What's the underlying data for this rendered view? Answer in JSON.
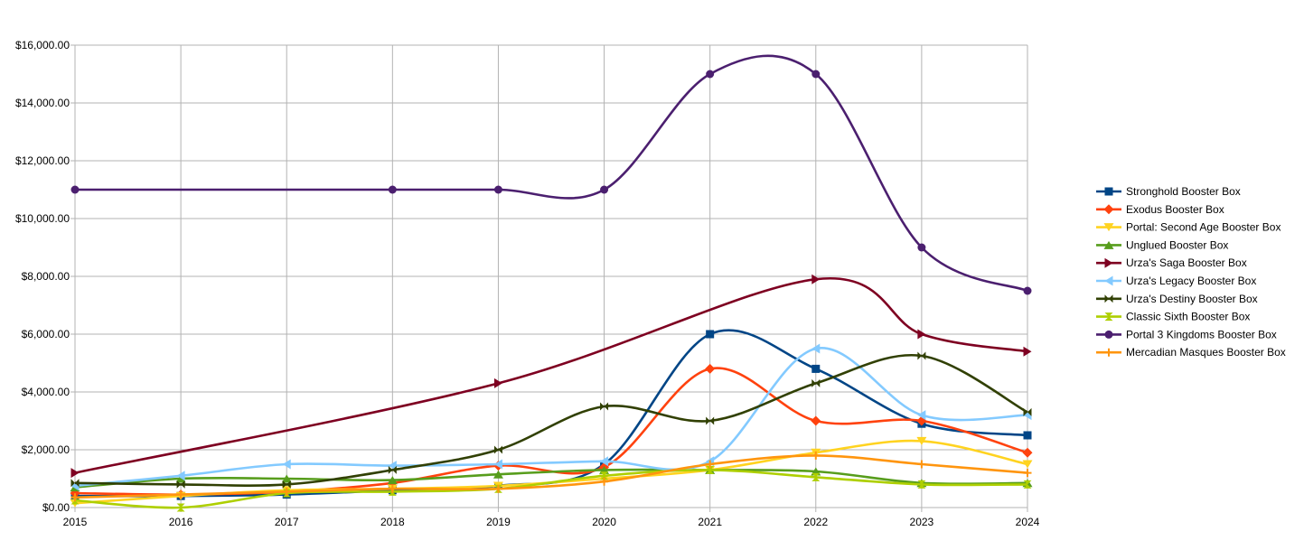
{
  "chart_data": {
    "type": "line",
    "title": "",
    "xlabel": "",
    "ylabel": "",
    "x": [
      "2015",
      "2016",
      "2017",
      "2018",
      "2019",
      "2020",
      "2021",
      "2022",
      "2023",
      "2024"
    ],
    "x_values": [
      2015,
      2016,
      2017,
      2018,
      2019,
      2020,
      2021,
      2022,
      2023,
      2024
    ],
    "ylim": [
      0,
      16000
    ],
    "y_ticks": [
      {
        "value": 0,
        "label": "$0.00"
      },
      {
        "value": 2000,
        "label": "$2,000.00"
      },
      {
        "value": 4000,
        "label": "$4,000.00"
      },
      {
        "value": 6000,
        "label": "$6,000.00"
      },
      {
        "value": 8000,
        "label": "$8,000.00"
      },
      {
        "value": 10000,
        "label": "$10,000.00"
      },
      {
        "value": 12000,
        "label": "$12,000.00"
      },
      {
        "value": 14000,
        "label": "$14,000.00"
      },
      {
        "value": 16000,
        "label": "$16,000.00"
      }
    ],
    "grid": true,
    "smooth": true,
    "legend_position": "right",
    "series": [
      {
        "name": "Stronghold Booster Box",
        "color": "#004586",
        "marker": "square",
        "values": [
          400,
          400,
          450,
          600,
          750,
          1500,
          6000,
          4800,
          2900,
          2500
        ]
      },
      {
        "name": "Exodus Booster Box",
        "color": "#ff420e",
        "marker": "diamond",
        "values": [
          500,
          450,
          550,
          850,
          1450,
          1400,
          4800,
          3000,
          3000,
          1900
        ]
      },
      {
        "name": "Portal: Second Age Booster Box",
        "color": "#ffd320",
        "marker": "triangle-down",
        "values": [
          150,
          400,
          600,
          650,
          750,
          1000,
          1300,
          1900,
          2300,
          1500
        ]
      },
      {
        "name": "Unglued Booster Box",
        "color": "#579d1c",
        "marker": "triangle-up",
        "values": [
          700,
          1000,
          1000,
          950,
          1150,
          1300,
          1300,
          1250,
          850,
          850
        ]
      },
      {
        "name": "Urza's Saga Booster Box",
        "color": "#7e0021",
        "marker": "triangle-right",
        "values": [
          1200,
          null,
          null,
          null,
          4300,
          null,
          null,
          7900,
          6000,
          5400
        ]
      },
      {
        "name": "Urza's Legacy Booster Box",
        "color": "#83caff",
        "marker": "triangle-left",
        "values": [
          750,
          1100,
          1500,
          1450,
          1500,
          1600,
          1600,
          5500,
          3200,
          3200
        ]
      },
      {
        "name": "Urza's Destiny Booster Box",
        "color": "#314004",
        "marker": "bowtie",
        "values": [
          850,
          800,
          800,
          1300,
          2000,
          3500,
          3000,
          4300,
          5250,
          3300
        ]
      },
      {
        "name": "Classic Sixth Booster Box",
        "color": "#aecf00",
        "marker": "hourglass",
        "values": [
          250,
          0,
          500,
          550,
          650,
          1100,
          1300,
          1050,
          800,
          800
        ]
      },
      {
        "name": "Portal 3 Kingdoms Booster Box",
        "color": "#4b1f6f",
        "marker": "circle",
        "values": [
          11000,
          null,
          null,
          11000,
          11000,
          11000,
          15000,
          15000,
          9000,
          7500
        ]
      },
      {
        "name": "Mercadian Masques Booster Box",
        "color": "#ff950e",
        "marker": "plus",
        "values": [
          350,
          450,
          550,
          650,
          650,
          900,
          1500,
          1800,
          1500,
          1200
        ]
      }
    ]
  }
}
